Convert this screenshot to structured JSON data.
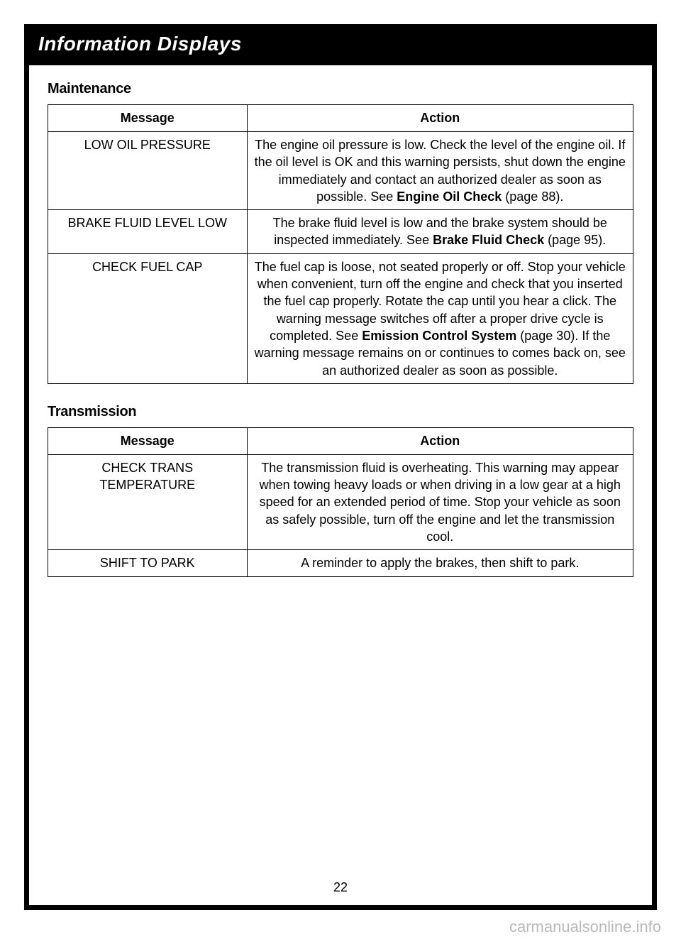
{
  "header": {
    "title": "Information Displays"
  },
  "pageNumber": "22",
  "watermark": "carmanualsonline.info",
  "sections": [
    {
      "heading": "Maintenance",
      "columns": [
        "Message",
        "Action"
      ],
      "rows": [
        {
          "message": "LOW OIL PRESSURE",
          "action_pre": "The engine oil pressure is low. Check the level of the engine oil. If the oil level is OK and this warning persists, shut down the engine immediately and contact an authorized dealer as soon as possible. See ",
          "action_bold": "Engine Oil Check",
          "action_post": " (page 88)."
        },
        {
          "message": "BRAKE FLUID LEVEL LOW",
          "action_pre": "The brake fluid level is low and the brake system should be inspected immediately. See ",
          "action_bold": "Brake Fluid Check",
          "action_post": " (page 95)."
        },
        {
          "message": "CHECK FUEL CAP",
          "action_pre": "The fuel cap is loose, not seated properly or off. Stop your vehicle when convenient, turn off the engine and check that you inserted the fuel cap properly. Rotate the cap until you hear a click. The warning message switches off after a proper drive cycle is completed. See ",
          "action_bold": "Emission Control System",
          "action_post": " (page 30).  If the warning message remains on or continues to comes back on, see an authorized dealer as soon as possible."
        }
      ]
    },
    {
      "heading": "Transmission",
      "columns": [
        "Message",
        "Action"
      ],
      "rows": [
        {
          "message": "CHECK TRANS TEMPERATURE",
          "action_pre": "The transmission fluid is overheating. This warning may appear when towing heavy loads or when driving in a low gear at a high speed for an extended period of time. Stop your vehicle as soon as safely possible, turn off the engine and let the transmission cool.",
          "action_bold": "",
          "action_post": ""
        },
        {
          "message": "SHIFT TO PARK",
          "action_pre": "A reminder to apply the brakes, then shift to park.",
          "action_bold": "",
          "action_post": ""
        }
      ]
    }
  ]
}
